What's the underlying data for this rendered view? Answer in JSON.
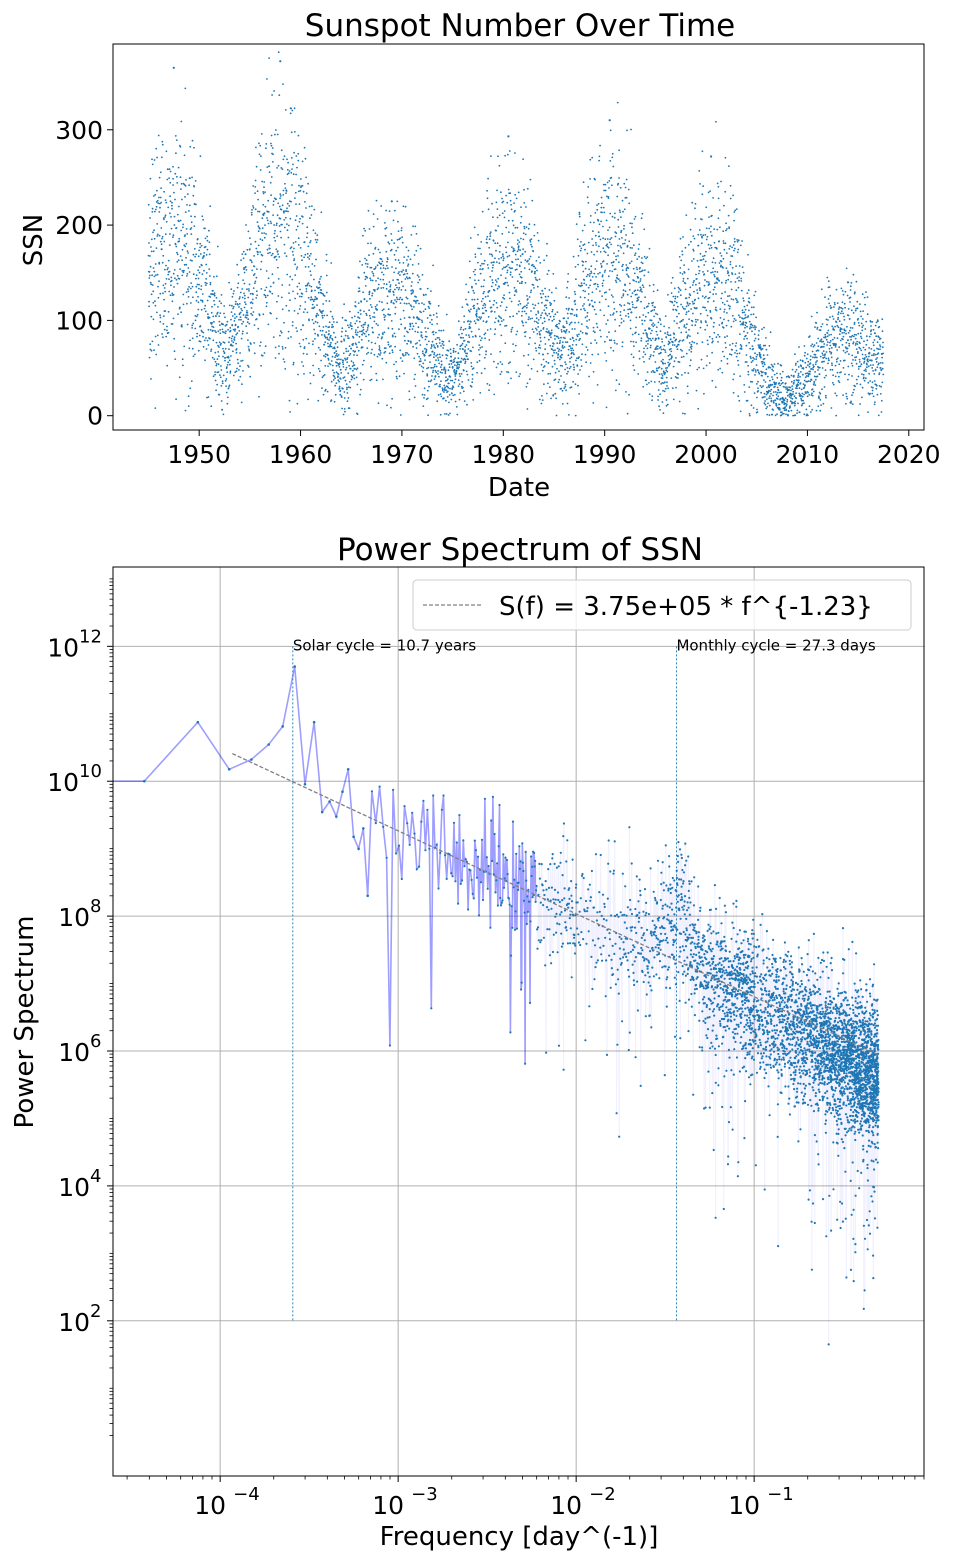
{
  "chart_data": [
    {
      "type": "scatter",
      "title": "Sunspot Number Over Time",
      "xlabel": "Date",
      "ylabel": "SSN",
      "xlim": [
        1941.5,
        2021.5
      ],
      "ylim": [
        -15,
        390
      ],
      "xticks": [
        1950,
        1960,
        1970,
        1980,
        1990,
        2000,
        2010,
        2020
      ],
      "xtick_labels": [
        "1950",
        "1960",
        "1970",
        "1980",
        "1990",
        "2000",
        "2010",
        "2020"
      ],
      "yticks": [
        0,
        100,
        200,
        300
      ],
      "ytick_labels": [
        "0",
        "100",
        "200",
        "300"
      ],
      "grid": false,
      "color": "#1f77b4",
      "data_range_x": [
        1945.0,
        2017.5
      ],
      "cycles": [
        {
          "peak_year": 1947.5,
          "peak_ssn": 365,
          "typical_max": 230
        },
        {
          "peak_year": 1958.0,
          "peak_ssn": 372,
          "typical_max": 250
        },
        {
          "peak_year": 1969.0,
          "peak_ssn": 225,
          "typical_max": 170
        },
        {
          "peak_year": 1980.5,
          "peak_ssn": 293,
          "typical_max": 200
        },
        {
          "peak_year": 1990.5,
          "peak_ssn": 310,
          "typical_max": 210
        },
        {
          "peak_year": 2000.5,
          "peak_ssn": 272,
          "typical_max": 190
        },
        {
          "peak_year": 2014.0,
          "peak_ssn": 140,
          "typical_max": 100
        }
      ]
    },
    {
      "type": "line",
      "title": "Power Spectrum of SSN",
      "xlabel": "Frequency [day^(-1)]",
      "ylabel": "Power Spectrum",
      "xscale": "log",
      "yscale": "log",
      "xlim": [
        2.5e-05,
        0.9
      ],
      "ylim": [
        0.5,
        15000000000000.0
      ],
      "xticks": [
        0.0001,
        0.001,
        0.01,
        0.1
      ],
      "xtick_labels": [
        {
          "base": "10",
          "exp": "−4"
        },
        {
          "base": "10",
          "exp": "−3"
        },
        {
          "base": "10",
          "exp": "−2"
        },
        {
          "base": "10",
          "exp": "−1"
        }
      ],
      "yticks": [
        100,
        10000,
        1000000,
        100000000,
        10000000000,
        1000000000000
      ],
      "ytick_labels": [
        {
          "base": "10",
          "exp": "2"
        },
        {
          "base": "10",
          "exp": "4"
        },
        {
          "base": "10",
          "exp": "6"
        },
        {
          "base": "10",
          "exp": "8"
        },
        {
          "base": "10",
          "exp": "10"
        },
        {
          "base": "10",
          "exp": "12"
        }
      ],
      "grid": true,
      "legend_position": "top-right",
      "fit": {
        "label": "S(f) = 3.75e+05 * f^{-1.23}",
        "amplitude": 375000,
        "exponent": -1.23,
        "x_range": [
          0.000117,
          0.5
        ],
        "color": "#808080"
      },
      "low_freq_series": {
        "color": "#0000ff",
        "x": [
          3.75e-05,
          7.49e-05,
          0.0001124,
          0.0001498,
          0.0001873,
          0.0002247,
          0.0002622,
          0.0002996,
          0.0003371,
          0.0003745,
          0.000412,
          0.0004494,
          0.0004869,
          0.0005243,
          0.0005618,
          0.0005992,
          0.0006367,
          0.0006741
        ],
        "y": [
          10000000000.0,
          75000000000.0,
          15000000000.0,
          21000000000.0,
          35000000000.0,
          65000000000.0,
          500000000000.0,
          9000000000.0,
          75000000000.0,
          3500000000.0,
          5000000000.0,
          3000000000.0,
          7000000000.0,
          15000000000.0,
          1500000000.0,
          1000000000.0,
          2000000000.0,
          200000000.0
        ]
      },
      "annotations": [
        {
          "text": "Solar cycle = 10.7 years",
          "x": 0.000256,
          "y": 1000000000000.0
        },
        {
          "text": "Monthly cycle = 27.3 days",
          "x": 0.0366,
          "y": 1000000000000.0
        }
      ],
      "vlines": [
        {
          "x": 0.000256,
          "y_range": [
            100,
            1000000000000.0
          ]
        },
        {
          "x": 0.0366,
          "y_range": [
            100,
            1000000000000.0
          ]
        }
      ]
    }
  ]
}
